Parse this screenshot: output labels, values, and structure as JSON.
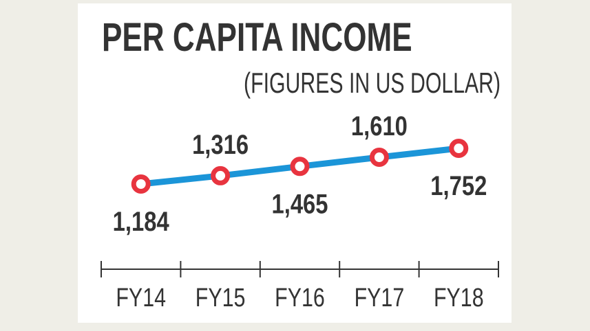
{
  "chart_data": {
    "type": "line",
    "title": "PER CAPITA INCOME",
    "subtitle": "(FIGURES IN US DOLLAR)",
    "categories": [
      "FY14",
      "FY15",
      "FY16",
      "FY17",
      "FY18"
    ],
    "values": [
      1184,
      1316,
      1465,
      1610,
      1752
    ],
    "data_labels": [
      "1,184",
      "1,316",
      "1,465",
      "1,610",
      "1,752"
    ],
    "label_positions": [
      "below",
      "above",
      "below",
      "above",
      "below"
    ],
    "grid": false,
    "legend": "none",
    "colors": {
      "line": "#1b95d8",
      "marker": "#e8343f",
      "marker_fill": "#ffffff",
      "text": "#333333",
      "background": "#efeee7"
    }
  }
}
